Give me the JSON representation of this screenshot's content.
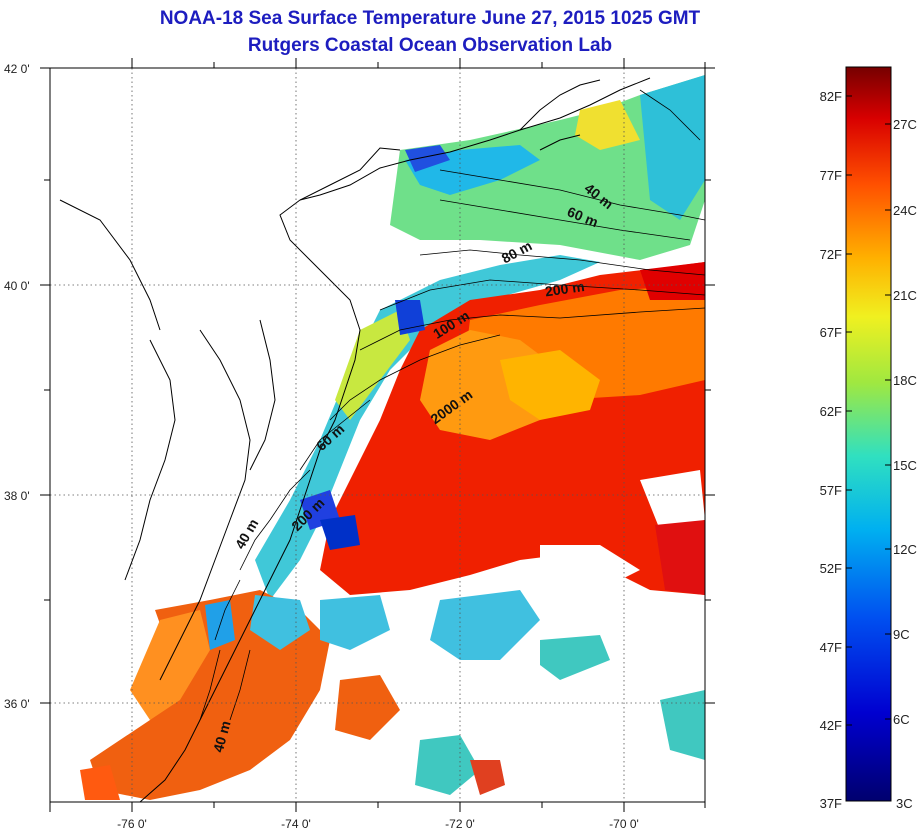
{
  "header": {
    "title": "NOAA-18 Sea Surface Temperature June 27, 2015 1025 GMT",
    "subtitle": "Rutgers Coastal Ocean Observation Lab"
  },
  "axes": {
    "lon_ticks": [
      "-76 0'",
      "-74 0'",
      "-72 0'",
      "-70 0'"
    ],
    "lat_ticks": [
      "42 0'",
      "40 0'",
      "38 0'",
      "36 0'"
    ]
  },
  "colorbar": {
    "fahrenheit": [
      "82F",
      "77F",
      "72F",
      "67F",
      "62F",
      "57F",
      "52F",
      "47F",
      "42F",
      "37F"
    ],
    "celsius": [
      "27C",
      "24C",
      "21C",
      "18C",
      "15C",
      "12C",
      "9C",
      "6C",
      "3C"
    ],
    "colors": [
      "#7a0000",
      "#c80000",
      "#ff2a00",
      "#ff7a00",
      "#ffc800",
      "#e8f020",
      "#80e060",
      "#20d0c0",
      "#00a0f0",
      "#0050f0",
      "#0000c8",
      "#00006e"
    ]
  },
  "isobaths": [
    "40 m",
    "60 m",
    "80 m",
    "200 m",
    "100 m",
    "2000 m",
    "60 m",
    "200 m",
    "40 m",
    "40 m"
  ]
}
